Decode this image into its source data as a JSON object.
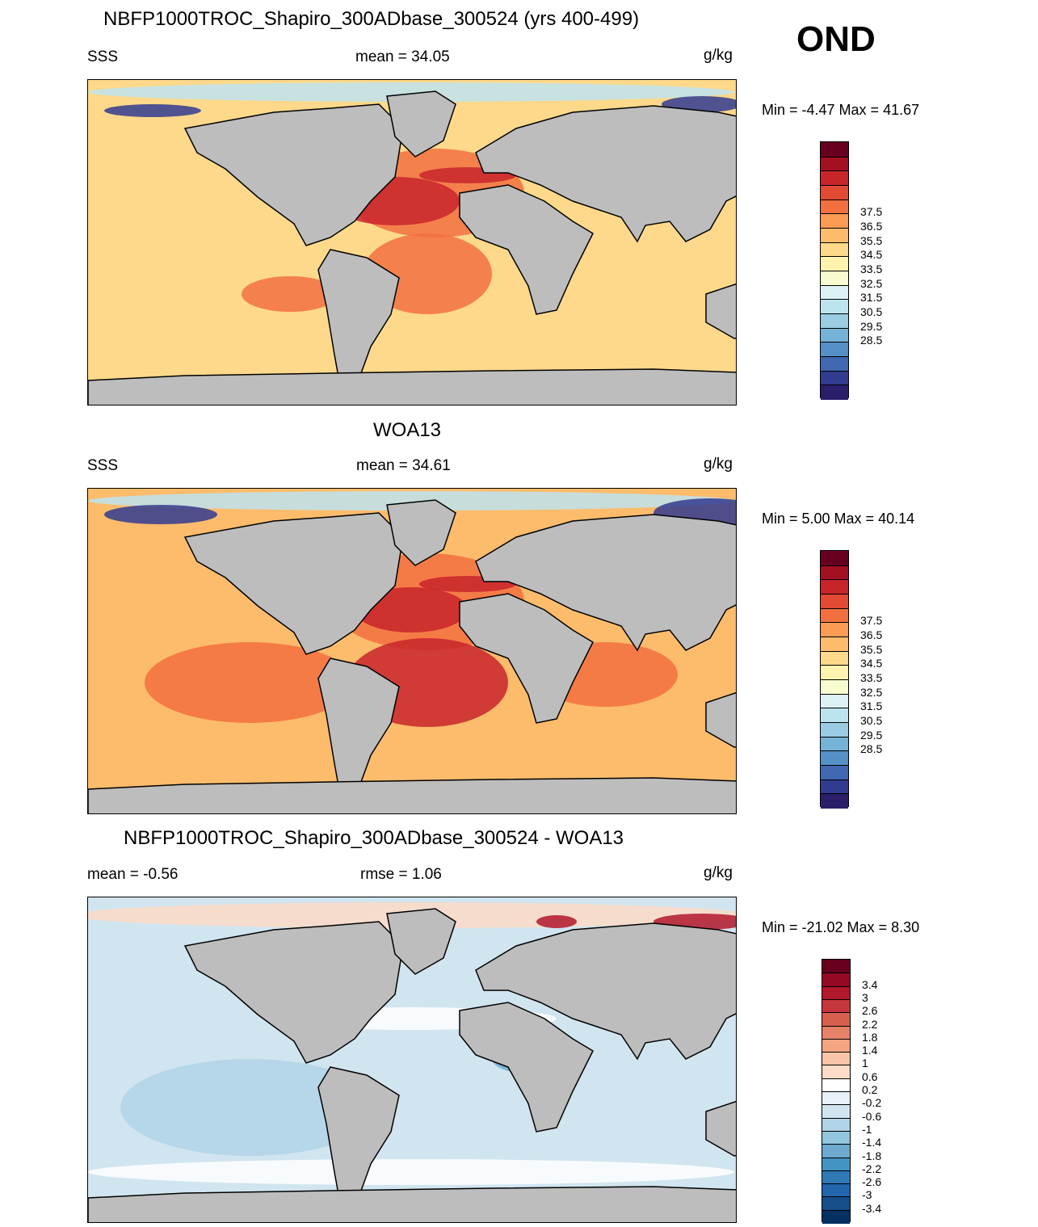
{
  "season": "OND",
  "panels": [
    {
      "id": "model",
      "title": "NBFP1000TROC_Shapiro_300ADbase_300524 (yrs 400-499)",
      "left_label": "SSS",
      "center_label": "mean =  34.05",
      "units": "g/kg",
      "minmax": "Min =  -4.47 Max =  41.67",
      "colorbar": {
        "labels": [
          "37.5",
          "36.5",
          "35.5",
          "34.5",
          "33.5",
          "32.5",
          "31.5",
          "30.5",
          "29.5",
          "28.5"
        ],
        "colors": [
          "#67001f",
          "#a50f22",
          "#c8252b",
          "#e34a33",
          "#f2703f",
          "#fb9b54",
          "#fdbc6c",
          "#fed98b",
          "#fff3ad",
          "#f7fbcf",
          "#ddf1f5",
          "#bde3ef",
          "#9acde3",
          "#75b2d7",
          "#5590c6",
          "#3f68b1",
          "#313b8f",
          "#2a1e6b"
        ]
      },
      "map_colors": {
        "ocean": "#fed98b",
        "subtropic": "#f2703f",
        "core": "#c8252b",
        "fresh": "#bde3ef",
        "arctic": "#313b8f",
        "land": "#bdbdbd"
      }
    },
    {
      "id": "obs",
      "title": "WOA13",
      "left_label": "SSS",
      "center_label": "mean =  34.61",
      "units": "g/kg",
      "minmax": "Min =   5.00 Max =  40.14",
      "colorbar": {
        "labels": [
          "37.5",
          "36.5",
          "35.5",
          "34.5",
          "33.5",
          "32.5",
          "31.5",
          "30.5",
          "29.5",
          "28.5"
        ],
        "colors": [
          "#67001f",
          "#a50f22",
          "#c8252b",
          "#e34a33",
          "#f2703f",
          "#fb9b54",
          "#fdbc6c",
          "#fed98b",
          "#fff3ad",
          "#f7fbcf",
          "#ddf1f5",
          "#bde3ef",
          "#9acde3",
          "#75b2d7",
          "#5590c6",
          "#3f68b1",
          "#313b8f",
          "#2a1e6b"
        ]
      },
      "map_colors": {
        "ocean": "#fdbc6c",
        "subtropic": "#f2703f",
        "core": "#c8252b",
        "fresh": "#bde3ef",
        "arctic": "#313b8f",
        "land": "#bdbdbd"
      }
    },
    {
      "id": "diff",
      "title": "NBFP1000TROC_Shapiro_300ADbase_300524 - WOA13",
      "left_label": "mean =  -0.56",
      "center_label": "rmse =   1.06",
      "units": "g/kg",
      "minmax": "Min = -21.02 Max =   8.30",
      "colorbar": {
        "labels": [
          "3.4",
          "3",
          "2.6",
          "2.2",
          "1.8",
          "1.4",
          "1",
          "0.6",
          "0.2",
          "-0.2",
          "-0.6",
          "-1",
          "-1.4",
          "-1.8",
          "-2.2",
          "-2.6",
          "-3",
          "-3.4"
        ],
        "colors": [
          "#67001f",
          "#940a25",
          "#b2182b",
          "#c6373b",
          "#d6604d",
          "#e58268",
          "#f4a582",
          "#f9c4a8",
          "#fddbc7",
          "#ffffff",
          "#e8f1f7",
          "#d1e5f0",
          "#b2d4e8",
          "#92c5de",
          "#6ea9d0",
          "#4393c3",
          "#3079b6",
          "#2166ac",
          "#164f8a",
          "#053061"
        ]
      },
      "map_colors": {
        "ocean": "#d1e5f0",
        "subtropic": "#b2d4e8",
        "core": "#6ea9d0",
        "fresh": "#ffffff",
        "arctic": "#fddbc7",
        "warm": "#b2182b",
        "land": "#bdbdbd"
      }
    }
  ]
}
